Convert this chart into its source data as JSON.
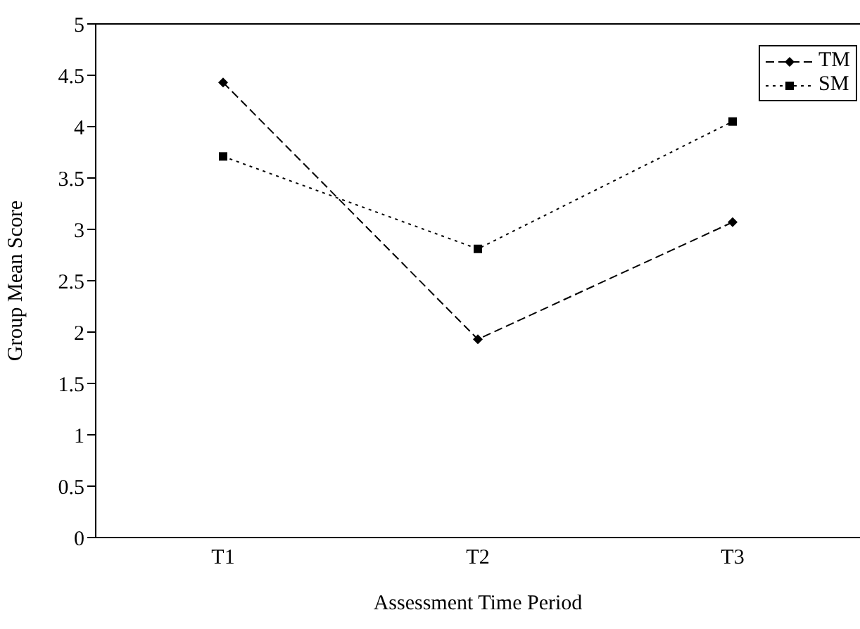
{
  "chart_data": {
    "type": "line",
    "xlabel": "Assessment Time Period",
    "ylabel": "Group Mean Score",
    "categories": [
      "T1",
      "T2",
      "T3"
    ],
    "series": [
      {
        "name": "TM",
        "color": "#000000",
        "values": [
          4.43,
          1.93,
          3.07
        ],
        "line_style": "dashed",
        "marker": "diamond"
      },
      {
        "name": "SM",
        "color": "#000000",
        "values": [
          3.71,
          2.81,
          4.05
        ],
        "line_style": "dotted",
        "marker": "square"
      }
    ],
    "ylim": [
      0,
      5
    ],
    "yticks": [
      0,
      0.5,
      1,
      1.5,
      2,
      2.5,
      3,
      3.5,
      4,
      4.5,
      5
    ],
    "legend": "top right"
  }
}
